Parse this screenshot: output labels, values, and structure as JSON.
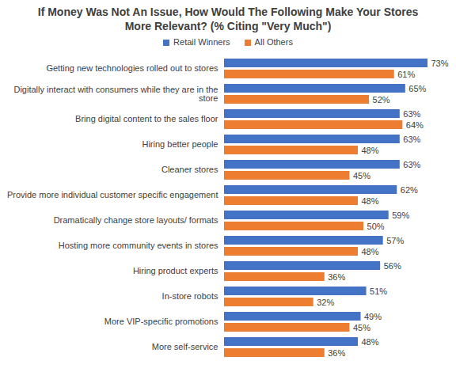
{
  "chart_data": {
    "type": "bar",
    "title": "If Money Was Not An Issue, How Would The Following Make Your Stores More Relevant? (% Citing \"Very Much\")",
    "orientation": "horizontal",
    "legend": "top",
    "data_labels": true,
    "tick_labels": "y",
    "grid": false,
    "categories": [
      "Getting new technologies rolled out to stores",
      "Digitally interact with consumers while they are in the store",
      "Bring digital content to the sales floor",
      "Hiring better people",
      "Cleaner stores",
      "Provide more individual customer specific engagement",
      "Dramatically change store layouts/ formats",
      "Hosting more community events in stores",
      "Hiring product experts",
      "In-store robots",
      "More VIP-specific promotions",
      "More self-service"
    ],
    "series": [
      {
        "name": "Retail Winners",
        "color": "#4472c4",
        "values": [
          73,
          65,
          63,
          63,
          63,
          62,
          59,
          57,
          56,
          51,
          49,
          48
        ],
        "value_labels": [
          "73%",
          "65%",
          "63%",
          "63%",
          "63%",
          "62%",
          "59%",
          "57%",
          "56%",
          "51%",
          "49%",
          "48%"
        ]
      },
      {
        "name": "All Others",
        "color": "#ed7d31",
        "values": [
          61,
          52,
          64,
          48,
          45,
          48,
          50,
          48,
          36,
          32,
          45,
          36
        ],
        "value_labels": [
          "61%",
          "52%",
          "64%",
          "48%",
          "45%",
          "48%",
          "50%",
          "48%",
          "36%",
          "32%",
          "45%",
          "36%"
        ]
      }
    ]
  }
}
